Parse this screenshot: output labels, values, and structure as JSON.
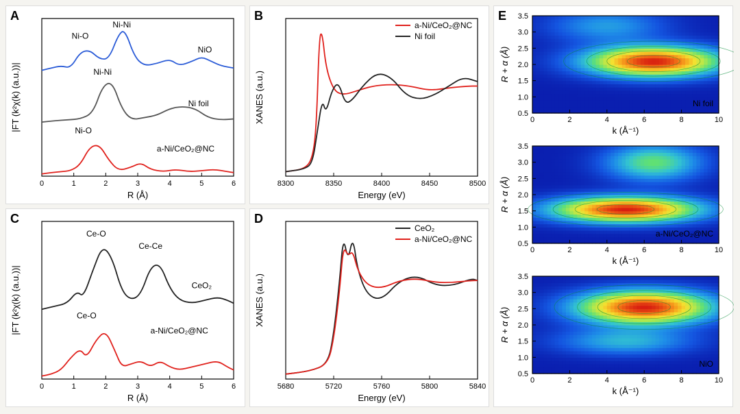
{
  "figure": {
    "background_color": "#f5f4f0",
    "panel_bg": "#ffffff"
  },
  "panelA": {
    "type": "line",
    "label": "A",
    "xlabel": "R (Å)",
    "ylabel": "|FT (k²χ(k) (a.u.))|",
    "xlim": [
      0,
      6
    ],
    "xtick_step": 1,
    "series": [
      {
        "name": "NiO",
        "color": "#2a5bd7",
        "annots": [
          {
            "text": "Ni-O",
            "x": 1.2,
            "y": 3.05
          },
          {
            "text": "Ni-Ni",
            "x": 2.5,
            "y": 3.3
          },
          {
            "text": "NiO",
            "x": 5.1,
            "y": 2.75
          }
        ],
        "offset": 2.3,
        "data": [
          [
            0,
            0.05
          ],
          [
            0.3,
            0.1
          ],
          [
            0.6,
            0.15
          ],
          [
            0.9,
            0.1
          ],
          [
            1.2,
            0.45
          ],
          [
            1.5,
            0.5
          ],
          [
            1.8,
            0.3
          ],
          [
            2.1,
            0.3
          ],
          [
            2.4,
            0.85
          ],
          [
            2.6,
            0.95
          ],
          [
            2.9,
            0.35
          ],
          [
            3.2,
            0.15
          ],
          [
            3.6,
            0.2
          ],
          [
            4.0,
            0.3
          ],
          [
            4.3,
            0.15
          ],
          [
            4.7,
            0.25
          ],
          [
            5.0,
            0.35
          ],
          [
            5.3,
            0.25
          ],
          [
            5.6,
            0.15
          ],
          [
            6,
            0.1
          ]
        ]
      },
      {
        "name": "Ni foil",
        "color": "#555555",
        "annots": [
          {
            "text": "Ni-Ni",
            "x": 1.9,
            "y": 2.25
          },
          {
            "text": "Ni foil",
            "x": 4.9,
            "y": 1.55
          }
        ],
        "offset": 1.15,
        "data": [
          [
            0,
            0.05
          ],
          [
            0.4,
            0.08
          ],
          [
            0.8,
            0.1
          ],
          [
            1.2,
            0.12
          ],
          [
            1.6,
            0.25
          ],
          [
            1.9,
            0.85
          ],
          [
            2.2,
            0.95
          ],
          [
            2.5,
            0.35
          ],
          [
            2.8,
            0.1
          ],
          [
            3.2,
            0.15
          ],
          [
            3.6,
            0.2
          ],
          [
            4.0,
            0.35
          ],
          [
            4.4,
            0.4
          ],
          [
            4.8,
            0.35
          ],
          [
            5.2,
            0.15
          ],
          [
            5.6,
            0.1
          ],
          [
            6,
            0.12
          ]
        ]
      },
      {
        "name": "a-Ni/CeO2@NC",
        "color": "#e0201b",
        "annots": [
          {
            "text": "Ni-O",
            "x": 1.3,
            "y": 0.95
          },
          {
            "text": "a-Ni/CeO₂@NC",
            "x": 4.5,
            "y": 0.55
          }
        ],
        "offset": 0.0,
        "data": [
          [
            0,
            0.05
          ],
          [
            0.3,
            0.08
          ],
          [
            0.6,
            0.1
          ],
          [
            0.9,
            0.12
          ],
          [
            1.2,
            0.25
          ],
          [
            1.5,
            0.65
          ],
          [
            1.8,
            0.7
          ],
          [
            2.1,
            0.35
          ],
          [
            2.4,
            0.12
          ],
          [
            2.8,
            0.2
          ],
          [
            3.1,
            0.3
          ],
          [
            3.4,
            0.15
          ],
          [
            3.8,
            0.1
          ],
          [
            4.2,
            0.15
          ],
          [
            4.6,
            0.1
          ],
          [
            5.0,
            0.12
          ],
          [
            5.4,
            0.15
          ],
          [
            5.8,
            0.1
          ],
          [
            6,
            0.08
          ]
        ]
      }
    ]
  },
  "panelB": {
    "type": "line",
    "label": "B",
    "xlabel": "Energy (eV)",
    "ylabel": "XANES (a.u.)",
    "xlim": [
      8300,
      8500
    ],
    "xtick_step": 50,
    "legend_pos": "top-right",
    "series": [
      {
        "name": "a-Ni/CeO₂@NC",
        "color": "#e0201b",
        "data": [
          [
            8300,
            0.05
          ],
          [
            8320,
            0.08
          ],
          [
            8328,
            0.2
          ],
          [
            8332,
            0.55
          ],
          [
            8335,
            1.55
          ],
          [
            8338,
            1.6
          ],
          [
            8342,
            1.2
          ],
          [
            8350,
            0.95
          ],
          [
            8360,
            0.9
          ],
          [
            8375,
            0.95
          ],
          [
            8390,
            1.0
          ],
          [
            8410,
            1.02
          ],
          [
            8430,
            1.0
          ],
          [
            8450,
            0.95
          ],
          [
            8470,
            0.98
          ],
          [
            8490,
            1.0
          ],
          [
            8500,
            1.0
          ]
        ]
      },
      {
        "name": "Ni foil",
        "color": "#222222",
        "data": [
          [
            8300,
            0.05
          ],
          [
            8320,
            0.08
          ],
          [
            8328,
            0.15
          ],
          [
            8333,
            0.5
          ],
          [
            8338,
            0.85
          ],
          [
            8342,
            0.7
          ],
          [
            8348,
            0.95
          ],
          [
            8355,
            1.05
          ],
          [
            8362,
            0.8
          ],
          [
            8370,
            0.85
          ],
          [
            8380,
            1.0
          ],
          [
            8395,
            1.15
          ],
          [
            8410,
            1.1
          ],
          [
            8425,
            0.9
          ],
          [
            8440,
            0.85
          ],
          [
            8455,
            0.9
          ],
          [
            8470,
            1.0
          ],
          [
            8485,
            1.1
          ],
          [
            8500,
            1.05
          ]
        ]
      }
    ]
  },
  "panelC": {
    "type": "line",
    "label": "C",
    "xlabel": "R (Å)",
    "ylabel": "|FT (k²χ(k) (a.u.))|",
    "xlim": [
      0,
      6
    ],
    "xtick_step": 1,
    "series": [
      {
        "name": "CeO2",
        "color": "#222222",
        "annots": [
          {
            "text": "Ce-O",
            "x": 1.7,
            "y": 2.35
          },
          {
            "text": "Ce-Ce",
            "x": 3.4,
            "y": 2.15
          },
          {
            "text": "CeO₂",
            "x": 5.0,
            "y": 1.5
          }
        ],
        "offset": 1.1,
        "data": [
          [
            0,
            0.05
          ],
          [
            0.4,
            0.1
          ],
          [
            0.8,
            0.15
          ],
          [
            1.1,
            0.35
          ],
          [
            1.3,
            0.25
          ],
          [
            1.6,
            0.7
          ],
          [
            1.9,
            1.1
          ],
          [
            2.2,
            0.9
          ],
          [
            2.5,
            0.35
          ],
          [
            2.8,
            0.2
          ],
          [
            3.1,
            0.3
          ],
          [
            3.4,
            0.75
          ],
          [
            3.7,
            0.8
          ],
          [
            4.0,
            0.4
          ],
          [
            4.3,
            0.2
          ],
          [
            4.7,
            0.15
          ],
          [
            5.1,
            0.2
          ],
          [
            5.5,
            0.25
          ],
          [
            5.8,
            0.2
          ],
          [
            6,
            0.15
          ]
        ]
      },
      {
        "name": "a-Ni/CeO2@NC",
        "color": "#e0201b",
        "annots": [
          {
            "text": "Ce-O",
            "x": 1.4,
            "y": 1.0
          },
          {
            "text": "a-Ni/CeO₂@NC",
            "x": 4.3,
            "y": 0.75
          }
        ],
        "offset": 0.0,
        "data": [
          [
            0,
            0.05
          ],
          [
            0.3,
            0.08
          ],
          [
            0.6,
            0.15
          ],
          [
            0.9,
            0.35
          ],
          [
            1.2,
            0.5
          ],
          [
            1.4,
            0.35
          ],
          [
            1.7,
            0.65
          ],
          [
            2.0,
            0.8
          ],
          [
            2.3,
            0.45
          ],
          [
            2.5,
            0.2
          ],
          [
            2.8,
            0.25
          ],
          [
            3.1,
            0.3
          ],
          [
            3.4,
            0.2
          ],
          [
            3.7,
            0.3
          ],
          [
            4.0,
            0.2
          ],
          [
            4.3,
            0.15
          ],
          [
            4.7,
            0.2
          ],
          [
            5.1,
            0.25
          ],
          [
            5.5,
            0.3
          ],
          [
            5.8,
            0.2
          ],
          [
            6,
            0.15
          ]
        ]
      }
    ]
  },
  "panelD": {
    "type": "line",
    "label": "D",
    "xlabel": "Energy (eV)",
    "ylabel": "XANES (a.u.)",
    "xlim": [
      5680,
      5840
    ],
    "xtick_step": 40,
    "legend_pos": "top-right",
    "series": [
      {
        "name": "CeO₂",
        "color": "#222222",
        "data": [
          [
            5680,
            0.05
          ],
          [
            5700,
            0.08
          ],
          [
            5715,
            0.15
          ],
          [
            5720,
            0.45
          ],
          [
            5725,
            1.0
          ],
          [
            5728,
            1.45
          ],
          [
            5732,
            1.2
          ],
          [
            5736,
            1.45
          ],
          [
            5740,
            1.1
          ],
          [
            5748,
            0.85
          ],
          [
            5760,
            0.8
          ],
          [
            5775,
            1.0
          ],
          [
            5790,
            1.05
          ],
          [
            5805,
            0.95
          ],
          [
            5820,
            0.95
          ],
          [
            5835,
            1.02
          ],
          [
            5840,
            1.0
          ]
        ]
      },
      {
        "name": "a-Ni/CeO₂@NC",
        "color": "#e0201b",
        "data": [
          [
            5680,
            0.05
          ],
          [
            5700,
            0.08
          ],
          [
            5715,
            0.15
          ],
          [
            5720,
            0.4
          ],
          [
            5725,
            0.9
          ],
          [
            5728,
            1.35
          ],
          [
            5732,
            1.25
          ],
          [
            5736,
            1.3
          ],
          [
            5740,
            1.1
          ],
          [
            5748,
            0.95
          ],
          [
            5760,
            0.92
          ],
          [
            5775,
            1.0
          ],
          [
            5790,
            1.02
          ],
          [
            5805,
            0.98
          ],
          [
            5820,
            0.98
          ],
          [
            5835,
            1.0
          ],
          [
            5840,
            1.0
          ]
        ]
      }
    ]
  },
  "panelE": {
    "type": "heatmap",
    "label": "E",
    "xlabel": "k (Å⁻¹)",
    "ylabel": "R + α (Å)",
    "xlim": [
      0,
      10
    ],
    "xtick_step": 2,
    "ylim": [
      0.5,
      3.5
    ],
    "ytick_step": 0.5,
    "colormap": [
      "#0a1fb0",
      "#1455e0",
      "#1f8fe8",
      "#33c4d0",
      "#5fe075",
      "#b8e84a",
      "#f4e030",
      "#f7a51e",
      "#ef6415",
      "#d81e10"
    ],
    "subplots": [
      {
        "title": "Ni foil",
        "title_color": "#ffffff",
        "peak_r": 2.1,
        "peak_k": 6.5,
        "sigma_r": 0.45,
        "sigma_k": 3.5,
        "secondary": {
          "r": 3.2,
          "k": 4,
          "amp": 0.25,
          "sr": 0.5,
          "sk": 3
        }
      },
      {
        "title": "a-Ni/CeO₂@NC",
        "title_color": "#ffffff",
        "peak_r": 1.55,
        "peak_k": 5.0,
        "sigma_r": 0.38,
        "sigma_k": 3.8,
        "secondary": {
          "r": 3.0,
          "k": 6.5,
          "amp": 0.45,
          "sr": 0.55,
          "sk": 2.5
        }
      },
      {
        "title": "NiO",
        "title_color": "#ffffff",
        "peak_r": 2.55,
        "peak_k": 6.0,
        "sigma_r": 0.5,
        "sigma_k": 3.5,
        "secondary": {
          "r": 1.5,
          "k": 5,
          "amp": 0.3,
          "sr": 0.4,
          "sk": 3.5
        }
      }
    ]
  }
}
